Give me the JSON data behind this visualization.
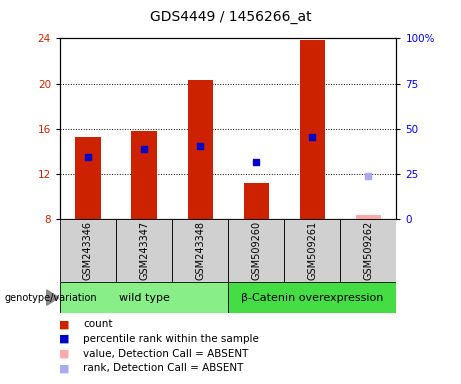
{
  "title": "GDS4449 / 1456266_at",
  "samples": [
    "GSM243346",
    "GSM243347",
    "GSM243348",
    "GSM509260",
    "GSM509261",
    "GSM509262"
  ],
  "bar_bottom": 8,
  "count_values": [
    15.3,
    15.8,
    20.3,
    11.2,
    23.9,
    8.3
  ],
  "count_absent": [
    false,
    false,
    false,
    false,
    false,
    true
  ],
  "percentile_values": [
    13.5,
    14.2,
    14.5,
    13.0,
    15.3,
    11.8
  ],
  "percentile_absent": [
    false,
    false,
    false,
    false,
    false,
    true
  ],
  "ylim_left": [
    8,
    24
  ],
  "ylim_right": [
    0,
    100
  ],
  "yticks_left": [
    8,
    12,
    16,
    20,
    24
  ],
  "yticks_right": [
    0,
    25,
    50,
    75,
    100
  ],
  "ytick_labels_right": [
    "0",
    "25",
    "50",
    "75",
    "100%"
  ],
  "bar_color": "#cc2200",
  "bar_absent_color": "#ffaaaa",
  "percentile_color": "#0000cc",
  "percentile_absent_color": "#aaaaee",
  "plot_bg_color": "#ffffff",
  "group1_label": "wild type",
  "group2_label": "β-Catenin overexpression",
  "group1_color": "#88ee88",
  "group2_color": "#44dd44",
  "group1_samples": [
    0,
    1,
    2
  ],
  "group2_samples": [
    3,
    4,
    5
  ],
  "legend_items": [
    {
      "label": "count",
      "color": "#cc2200"
    },
    {
      "label": "percentile rank within the sample",
      "color": "#0000cc"
    },
    {
      "label": "value, Detection Call = ABSENT",
      "color": "#ffaaaa"
    },
    {
      "label": "rank, Detection Call = ABSENT",
      "color": "#aaaaee"
    }
  ],
  "bar_width": 0.45,
  "percentile_marker_size": 5,
  "title_fontsize": 10,
  "tick_fontsize": 7.5,
  "sample_fontsize": 7,
  "group_fontsize": 8,
  "legend_fontsize": 7.5
}
